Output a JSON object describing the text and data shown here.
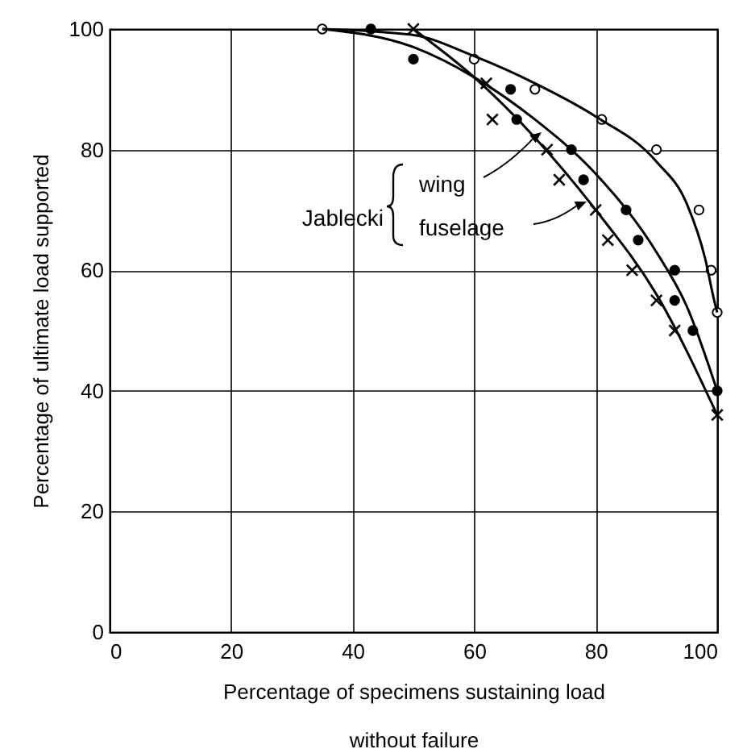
{
  "chart_data": {
    "type": "scatter",
    "xlabel": "Percentage of specimens sustaining load\nwithout failure",
    "ylabel": "Percentage of ultimate load supported",
    "xlim": [
      0,
      100
    ],
    "ylim": [
      0,
      100
    ],
    "xticks": [
      0,
      20,
      40,
      60,
      80,
      100
    ],
    "yticks": [
      0,
      20,
      40,
      60,
      80,
      100
    ],
    "grid": true,
    "series": [
      {
        "type": "scatter",
        "marker": "circle",
        "color": "#ffffff",
        "x": [
          35,
          60,
          70,
          81,
          90,
          97,
          99,
          100
        ],
        "values": [
          100,
          95,
          90,
          85,
          80,
          70,
          60,
          53
        ]
      },
      {
        "type": "scatter",
        "marker": "circle",
        "color": "#000000",
        "x": [
          43,
          50,
          66,
          67,
          76,
          78,
          85,
          87,
          93,
          93,
          96,
          100
        ],
        "values": [
          100,
          95,
          90,
          85,
          80,
          75,
          70,
          65,
          60,
          55,
          50,
          40
        ]
      },
      {
        "type": "scatter",
        "marker": "cross",
        "color": "#000000",
        "x": [
          50,
          62,
          63,
          72,
          74,
          80,
          82,
          86,
          90,
          93,
          100
        ],
        "values": [
          100,
          91,
          85,
          80,
          75,
          70,
          65,
          60,
          55,
          50,
          36
        ]
      },
      {
        "type": "line",
        "marker": "none",
        "color": "#000000",
        "x": [
          35,
          50,
          60,
          70,
          80,
          90,
          95,
          98,
          99.5,
          100
        ],
        "values": [
          100,
          99,
          95.5,
          91,
          85.5,
          78,
          71,
          62,
          55,
          53
        ]
      },
      {
        "type": "line",
        "marker": "none",
        "color": "#000000",
        "x": [
          35,
          50,
          60,
          70,
          80,
          90,
          95,
          100
        ],
        "values": [
          100,
          97,
          92,
          85,
          76,
          63,
          54,
          40
        ]
      },
      {
        "type": "line",
        "marker": "none",
        "color": "#000000",
        "x": [
          50,
          60,
          70,
          80,
          90,
          100
        ],
        "values": [
          100,
          92,
          82,
          70,
          56,
          36
        ]
      }
    ],
    "annotations": [
      "Jablecki",
      "wing",
      "fuselage"
    ]
  }
}
